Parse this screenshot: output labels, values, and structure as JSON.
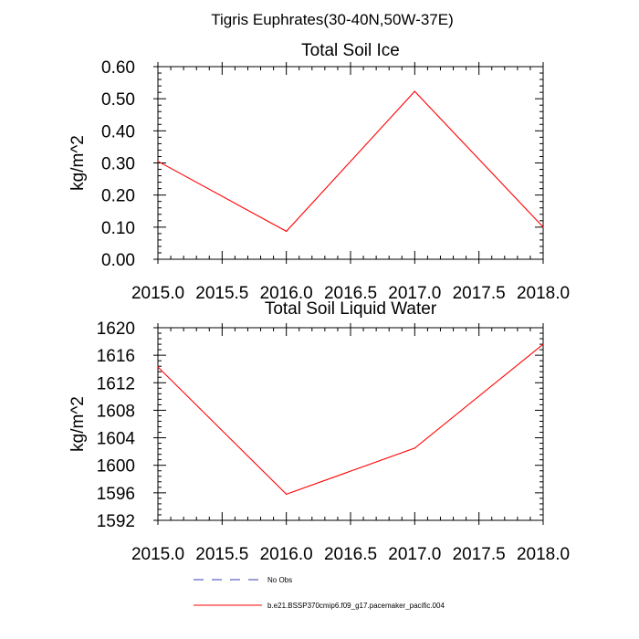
{
  "page_title": "Tigris Euphrates(30-40N,50W-37E)",
  "chart_data": [
    {
      "type": "line",
      "title": "Total Soil Ice",
      "xlabel": "",
      "ylabel": "kg/m^2",
      "xlim": [
        2015.0,
        2018.0
      ],
      "ylim": [
        0.0,
        0.6
      ],
      "x_ticks": [
        "2015.0",
        "2015.5",
        "2016.0",
        "2016.5",
        "2017.0",
        "2017.5",
        "2018.0"
      ],
      "x_tick_values": [
        2015.0,
        2015.5,
        2016.0,
        2016.5,
        2017.0,
        2017.5,
        2018.0
      ],
      "y_ticks": [
        "0.00",
        "0.10",
        "0.20",
        "0.30",
        "0.40",
        "0.50",
        "0.60"
      ],
      "y_tick_values": [
        0.0,
        0.1,
        0.2,
        0.3,
        0.4,
        0.5,
        0.6
      ],
      "series": [
        {
          "name": "b.e21.BSSP370cmip6.f09_g17.pacemaker_pacific.004",
          "color": "#ff0000",
          "x": [
            2015.0,
            2016.0,
            2017.0,
            2018.0
          ],
          "values": [
            0.305,
            0.087,
            0.523,
            0.1
          ]
        }
      ]
    },
    {
      "type": "line",
      "title": "Total Soil Liquid Water",
      "xlabel": "",
      "ylabel": "kg/m^2",
      "xlim": [
        2015.0,
        2018.0
      ],
      "ylim": [
        1592,
        1620
      ],
      "x_ticks": [
        "2015.0",
        "2015.5",
        "2016.0",
        "2016.5",
        "2017.0",
        "2017.5",
        "2018.0"
      ],
      "x_tick_values": [
        2015.0,
        2015.5,
        2016.0,
        2016.5,
        2017.0,
        2017.5,
        2018.0
      ],
      "y_ticks": [
        "1592",
        "1596",
        "1600",
        "1604",
        "1608",
        "1612",
        "1616",
        "1620"
      ],
      "y_tick_values": [
        1592,
        1596,
        1600,
        1604,
        1608,
        1612,
        1616,
        1620
      ],
      "series": [
        {
          "name": "b.e21.BSSP370cmip6.f09_g17.pacemaker_pacific.004",
          "color": "#ff0000",
          "x": [
            2015.0,
            2016.0,
            2017.0,
            2018.0
          ],
          "values": [
            1614.3,
            1595.8,
            1602.5,
            1617.6
          ]
        }
      ]
    }
  ],
  "legend": [
    {
      "label": "No Obs",
      "color": "#3b3bb0",
      "style": "dashed"
    },
    {
      "label": "b.e21.BSSP370cmip6.f09_g17.pacemaker_pacific.004",
      "color": "#ff0000",
      "style": "solid"
    }
  ]
}
